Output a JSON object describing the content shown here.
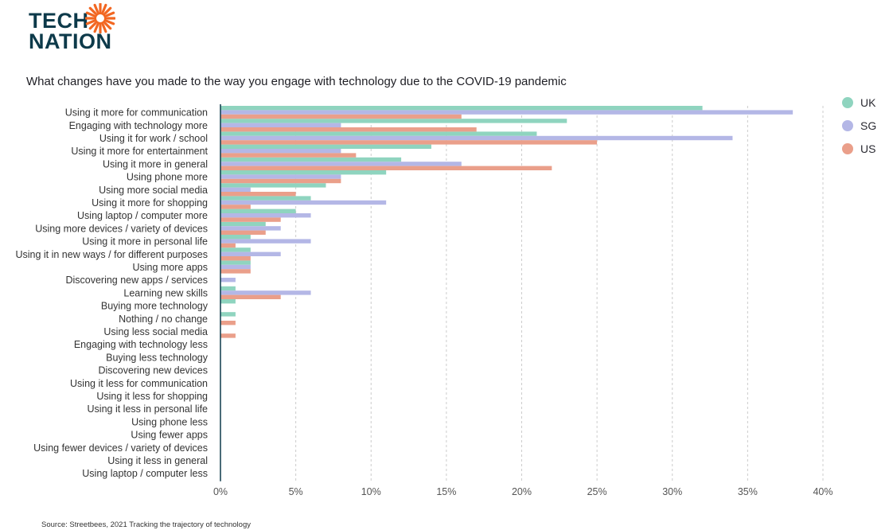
{
  "logo": {
    "line1": "TECH",
    "line2": "NATION",
    "accent": "#f26722"
  },
  "source_text": "Source: Streetbees, 2021 Tracking the trajectory of technology",
  "colors": {
    "UK": "#8fd4bf",
    "SG": "#b4b7e6",
    "US": "#ea9f8a",
    "axis": "#0d3a4a",
    "grid": "#cccccc"
  },
  "chart_data": {
    "type": "bar",
    "orientation": "horizontal",
    "title": "What changes have you made to the way you engage with technology due to the COVID-19 pandemic",
    "categories": [
      "Using it more for communication",
      "Engaging with technology more",
      "Using it for work / school",
      "Using it more for entertainment",
      "Using it more in general",
      "Using phone more",
      "Using more social media",
      "Using it more for shopping",
      "Using laptop / computer more",
      "Using more devices / variety of devices",
      "Using it more in personal life",
      "Using it in new ways / for different purposes",
      "Using more apps",
      "Discovering new apps / services",
      "Learning new skills",
      "Buying more technology",
      "Nothing / no change",
      "Using less social media",
      "Engaging with technology less",
      "Buying less technology",
      "Discovering new devices",
      "Using it less for communication",
      "Using it less for shopping",
      "Using it less in personal life",
      "Using phone less",
      "Using fewer apps",
      "Using fewer devices / variety of devices",
      "Using it less in general",
      "Using laptop / computer less"
    ],
    "series": [
      {
        "name": "UK",
        "values": [
          32,
          23,
          21,
          14,
          12,
          11,
          7,
          6,
          5,
          3,
          2,
          2,
          2,
          0,
          1,
          1,
          1,
          0,
          0,
          0,
          0,
          0,
          0,
          0,
          0,
          0,
          0,
          0,
          0
        ]
      },
      {
        "name": "SG",
        "values": [
          38,
          8,
          34,
          8,
          16,
          8,
          2,
          11,
          6,
          4,
          6,
          4,
          2,
          1,
          6,
          0,
          0,
          0,
          0,
          0,
          0,
          0,
          0,
          0,
          0,
          0,
          0,
          0,
          0
        ]
      },
      {
        "name": "US",
        "values": [
          16,
          17,
          25,
          9,
          22,
          8,
          5,
          2,
          4,
          3,
          1,
          2,
          2,
          0,
          4,
          0,
          1,
          1,
          0,
          0,
          0,
          0,
          0,
          0,
          0,
          0,
          0,
          0,
          0
        ]
      }
    ],
    "xlim": [
      0,
      40
    ],
    "xticks": [
      0,
      5,
      10,
      15,
      20,
      25,
      30,
      35,
      40
    ],
    "xtick_labels": [
      "0%",
      "5%",
      "10%",
      "15%",
      "20%",
      "25%",
      "30%",
      "35%",
      "40%"
    ],
    "grid": "vertical dashed",
    "legend_position": "top-right"
  }
}
